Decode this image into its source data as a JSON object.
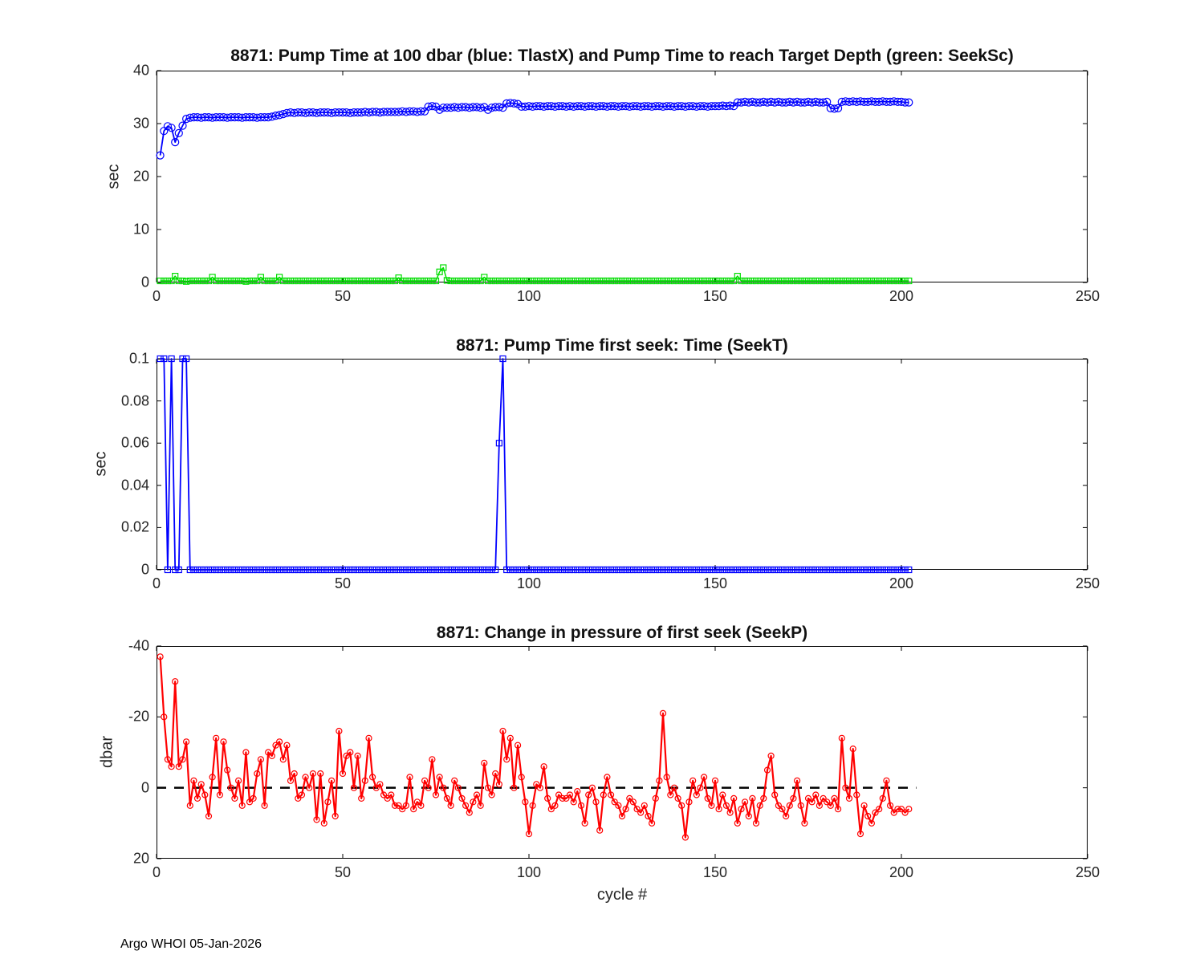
{
  "figure": {
    "footer": "Argo WHOI 05-Jan-2026"
  },
  "chart_data": [
    {
      "type": "line",
      "title": "8871:  Pump Time at 100 dbar (blue: TlastX) and Pump Time to reach Target Depth (green: SeekSc)",
      "ylabel": "sec",
      "xlabel": "",
      "xlim": [
        0,
        250
      ],
      "ylim": [
        0,
        40
      ],
      "xticks": [
        0,
        50,
        100,
        150,
        200,
        250
      ],
      "yticks": [
        0,
        10,
        20,
        30,
        40
      ],
      "x_description": "cycle # 1..202",
      "grid": false,
      "series": [
        {
          "name": "TlastX",
          "color": "#0000ff",
          "marker": "circle",
          "marker_size": 4.5,
          "line_width": 1.8,
          "values": [
            24.0,
            28.6,
            29.5,
            29.2,
            26.5,
            28.2,
            29.6,
            30.9,
            31.1,
            31.2,
            31.2,
            31.1,
            31.2,
            31.2,
            31.1,
            31.2,
            31.2,
            31.2,
            31.1,
            31.2,
            31.2,
            31.2,
            31.1,
            31.2,
            31.2,
            31.2,
            31.1,
            31.2,
            31.2,
            31.2,
            31.3,
            31.5,
            31.6,
            31.8,
            32.0,
            32.1,
            32.0,
            32.1,
            32.1,
            32.0,
            32.1,
            32.1,
            32.0,
            32.1,
            32.1,
            32.1,
            32.0,
            32.1,
            32.1,
            32.1,
            32.1,
            32.0,
            32.1,
            32.1,
            32.1,
            32.2,
            32.1,
            32.2,
            32.2,
            32.1,
            32.2,
            32.2,
            32.2,
            32.2,
            32.2,
            32.3,
            32.2,
            32.3,
            32.3,
            32.2,
            32.3,
            32.3,
            33.2,
            33.3,
            33.2,
            32.6,
            33.0,
            33.0,
            33.0,
            33.1,
            33.0,
            33.1,
            33.1,
            33.0,
            33.1,
            33.1,
            33.0,
            33.1,
            32.6,
            33.0,
            33.1,
            33.1,
            33.0,
            33.8,
            33.9,
            33.8,
            33.7,
            33.2,
            33.2,
            33.3,
            33.2,
            33.3,
            33.3,
            33.2,
            33.3,
            33.3,
            33.2,
            33.3,
            33.3,
            33.2,
            33.3,
            33.2,
            33.3,
            33.3,
            33.2,
            33.3,
            33.3,
            33.2,
            33.3,
            33.3,
            33.2,
            33.3,
            33.3,
            33.2,
            33.3,
            33.3,
            33.2,
            33.3,
            33.3,
            33.2,
            33.3,
            33.3,
            33.2,
            33.3,
            33.3,
            33.2,
            33.3,
            33.3,
            33.2,
            33.3,
            33.3,
            33.2,
            33.3,
            33.3,
            33.2,
            33.3,
            33.3,
            33.2,
            33.3,
            33.3,
            33.3,
            33.4,
            33.3,
            33.4,
            33.3,
            34.0,
            34.0,
            34.1,
            34.0,
            34.1,
            34.0,
            34.0,
            34.1,
            34.0,
            34.1,
            34.0,
            34.1,
            34.0,
            34.0,
            34.1,
            34.0,
            34.1,
            34.0,
            34.0,
            34.1,
            34.0,
            34.1,
            34.0,
            34.0,
            34.1,
            32.9,
            32.8,
            32.9,
            34.1,
            34.2,
            34.1,
            34.2,
            34.1,
            34.2,
            34.1,
            34.1,
            34.2,
            34.1,
            34.1,
            34.2,
            34.1,
            34.1,
            34.2,
            34.1,
            34.1,
            34.0,
            34.0
          ]
        },
        {
          "name": "SeekSc",
          "color": "#00dd00",
          "marker": "square",
          "marker_size": 3.5,
          "line_width": 1.5,
          "values": [
            0.3,
            0.3,
            0.3,
            0.3,
            1.2,
            0.3,
            0.3,
            0.2,
            0.3,
            0.3,
            0.3,
            0.3,
            0.3,
            0.3,
            1.0,
            0.3,
            0.3,
            0.3,
            0.3,
            0.3,
            0.3,
            0.3,
            0.3,
            0.2,
            0.3,
            0.3,
            0.3,
            1.0,
            0.3,
            0.3,
            0.3,
            0.3,
            1.0,
            0.3,
            0.3,
            0.3,
            0.3,
            0.3,
            0.3,
            0.3,
            0.3,
            0.3,
            0.3,
            0.3,
            0.3,
            0.3,
            0.3,
            0.3,
            0.3,
            0.3,
            0.3,
            0.3,
            0.3,
            0.3,
            0.3,
            0.3,
            0.3,
            0.3,
            0.3,
            0.3,
            0.3,
            0.3,
            0.3,
            0.3,
            0.9,
            0.3,
            0.3,
            0.3,
            0.3,
            0.3,
            0.3,
            0.3,
            0.3,
            0.3,
            0.3,
            2.0,
            2.8,
            0.4,
            0.3,
            0.3,
            0.3,
            0.3,
            0.3,
            0.3,
            0.3,
            0.3,
            0.3,
            1.0,
            0.3,
            0.3,
            0.3,
            0.3,
            0.3,
            0.3,
            0.3,
            0.3,
            0.3,
            0.3,
            0.3,
            0.3,
            0.3,
            0.3,
            0.3,
            0.3,
            0.3,
            0.3,
            0.3,
            0.3,
            0.3,
            0.3,
            0.3,
            0.3,
            0.3,
            0.3,
            0.3,
            0.3,
            0.3,
            0.3,
            0.3,
            0.3,
            0.3,
            0.3,
            0.3,
            0.3,
            0.3,
            0.3,
            0.3,
            0.3,
            0.3,
            0.3,
            0.3,
            0.3,
            0.3,
            0.3,
            0.3,
            0.3,
            0.3,
            0.3,
            0.3,
            0.3,
            0.3,
            0.3,
            0.3,
            0.3,
            0.3,
            0.3,
            0.3,
            0.3,
            0.3,
            0.3,
            0.3,
            0.3,
            0.3,
            0.3,
            0.3,
            1.2,
            0.3,
            0.3,
            0.3,
            0.3,
            0.3,
            0.3,
            0.3,
            0.3,
            0.3,
            0.3,
            0.3,
            0.3,
            0.3,
            0.3,
            0.3,
            0.3,
            0.3,
            0.3,
            0.3,
            0.3,
            0.3,
            0.3,
            0.3,
            0.3,
            0.3,
            0.3,
            0.3,
            0.3,
            0.3,
            0.3,
            0.3,
            0.3,
            0.3,
            0.3,
            0.3,
            0.3,
            0.3,
            0.3,
            0.3,
            0.3,
            0.3,
            0.3,
            0.3,
            0.3,
            0.3,
            0.3
          ]
        }
      ]
    },
    {
      "type": "line",
      "title": "8871: Pump Time first seek: Time (SeekT)",
      "ylabel": "sec",
      "xlabel": "",
      "xlim": [
        0,
        250
      ],
      "ylim": [
        0,
        0.1
      ],
      "xticks": [
        0,
        50,
        100,
        150,
        200,
        250
      ],
      "yticks": [
        0,
        0.02,
        0.04,
        0.06,
        0.08,
        0.1
      ],
      "x_description": "cycle # 1..202",
      "grid": false,
      "series": [
        {
          "name": "SeekT",
          "color": "#0000ff",
          "marker": "square",
          "marker_size": 3.5,
          "line_width": 1.8,
          "values": [
            0.1,
            0.1,
            0,
            0.1,
            0,
            0,
            0.1,
            0.1,
            0,
            0,
            0,
            0,
            0,
            0,
            0,
            0,
            0,
            0,
            0,
            0,
            0,
            0,
            0,
            0,
            0,
            0,
            0,
            0,
            0,
            0,
            0,
            0,
            0,
            0,
            0,
            0,
            0,
            0,
            0,
            0,
            0,
            0,
            0,
            0,
            0,
            0,
            0,
            0,
            0,
            0,
            0,
            0,
            0,
            0,
            0,
            0,
            0,
            0,
            0,
            0,
            0,
            0,
            0,
            0,
            0,
            0,
            0,
            0,
            0,
            0,
            0,
            0,
            0,
            0,
            0,
            0,
            0,
            0,
            0,
            0,
            0,
            0,
            0,
            0,
            0,
            0,
            0,
            0,
            0,
            0,
            0,
            0.06,
            0.1,
            0,
            0,
            0,
            0,
            0,
            0,
            0,
            0,
            0,
            0,
            0,
            0,
            0,
            0,
            0,
            0,
            0,
            0,
            0,
            0,
            0,
            0,
            0,
            0,
            0,
            0,
            0,
            0,
            0,
            0,
            0,
            0,
            0,
            0,
            0,
            0,
            0,
            0,
            0,
            0,
            0,
            0,
            0,
            0,
            0,
            0,
            0,
            0,
            0,
            0,
            0,
            0,
            0,
            0,
            0,
            0,
            0,
            0,
            0,
            0,
            0,
            0,
            0,
            0,
            0,
            0,
            0,
            0,
            0,
            0,
            0,
            0,
            0,
            0,
            0,
            0,
            0,
            0,
            0,
            0,
            0,
            0,
            0,
            0,
            0,
            0,
            0,
            0,
            0,
            0,
            0,
            0,
            0,
            0,
            0,
            0,
            0,
            0,
            0,
            0,
            0,
            0,
            0,
            0,
            0,
            0,
            0,
            0,
            0
          ]
        }
      ]
    },
    {
      "type": "line",
      "title": "8871: Change in pressure of first seek (SeekP)",
      "ylabel": "dbar",
      "xlabel": "cycle #",
      "xlim": [
        0,
        250
      ],
      "ylim": [
        -40,
        20
      ],
      "y_reversed": true,
      "xticks": [
        0,
        50,
        100,
        150,
        200,
        250
      ],
      "yticks": [
        -40,
        -20,
        0,
        20
      ],
      "x_description": "cycle # 1..202",
      "grid": false,
      "zero_line": {
        "y": 0,
        "x_start": 0,
        "x_end": 204,
        "style": "dashed",
        "color": "#000000"
      },
      "series": [
        {
          "name": "SeekP",
          "color": "#ff0000",
          "marker": "circle",
          "marker_size": 3.5,
          "line_width": 2.2,
          "values": [
            -37,
            -20,
            -8,
            -6,
            -30,
            -6,
            -8,
            -13,
            5,
            -2,
            3,
            -1,
            2,
            8,
            -3,
            -14,
            2,
            -13,
            -5,
            0,
            3,
            -2,
            5,
            -10,
            4,
            3,
            -4,
            -8,
            5,
            -10,
            -9,
            -12,
            -13,
            -8,
            -12,
            -2,
            -4,
            3,
            2,
            -3,
            0,
            -4,
            9,
            -4,
            10,
            4,
            -2,
            8,
            -16,
            -4,
            -9,
            -10,
            0,
            -9,
            3,
            -2,
            -14,
            -3,
            0,
            -1,
            2,
            3,
            2,
            5,
            5,
            6,
            5,
            -3,
            6,
            4,
            5,
            -2,
            0,
            -8,
            2,
            -3,
            0,
            3,
            5,
            -2,
            0,
            3,
            5,
            7,
            4,
            2,
            5,
            -7,
            0,
            2,
            -4,
            -1,
            -16,
            -8,
            -14,
            0,
            -12,
            -3,
            4,
            13,
            5,
            -1,
            0,
            -6,
            3,
            6,
            5,
            2,
            3,
            3,
            2,
            4,
            1,
            5,
            10,
            2,
            0,
            4,
            12,
            2,
            -3,
            2,
            4,
            5,
            8,
            6,
            3,
            4,
            6,
            7,
            5,
            8,
            10,
            3,
            -2,
            -21,
            -3,
            2,
            0,
            3,
            5,
            14,
            4,
            -2,
            2,
            0,
            -3,
            3,
            5,
            -2,
            6,
            2,
            5,
            7,
            3,
            10,
            6,
            4,
            8,
            3,
            10,
            5,
            3,
            -5,
            -9,
            2,
            5,
            6,
            8,
            5,
            3,
            -2,
            5,
            10,
            3,
            4,
            2,
            5,
            3,
            4,
            5,
            3,
            6,
            -14,
            0,
            3,
            -11,
            2,
            13,
            5,
            8,
            10,
            7,
            6,
            3,
            -2,
            5,
            7,
            6,
            6,
            7,
            6
          ]
        }
      ]
    }
  ]
}
